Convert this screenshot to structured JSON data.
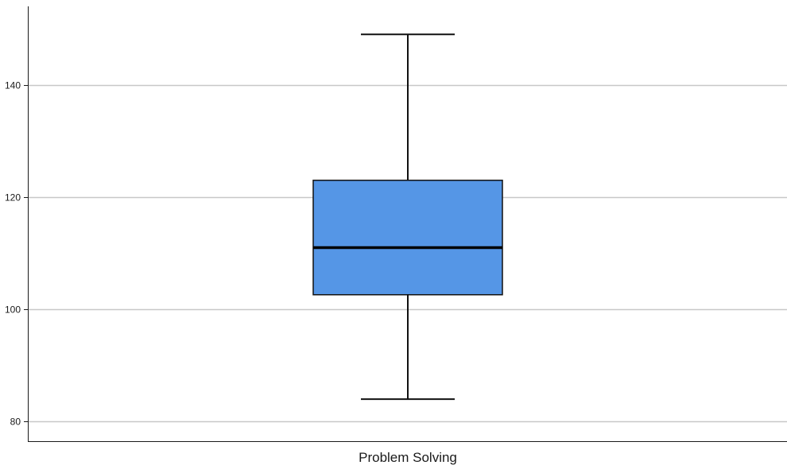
{
  "chart_data": {
    "type": "boxplot",
    "title": "",
    "xlabel": "",
    "ylabel": "",
    "ylim": [
      76.5,
      154
    ],
    "yticks": [
      80,
      100,
      120,
      140
    ],
    "grid": true,
    "categories": [
      "Problem Solving"
    ],
    "boxes": [
      {
        "category": "Problem Solving",
        "whisker_low": 84,
        "q1": 102.6,
        "median": 111,
        "q3": 123,
        "whisker_high": 149,
        "color": "#5596E6"
      }
    ]
  }
}
